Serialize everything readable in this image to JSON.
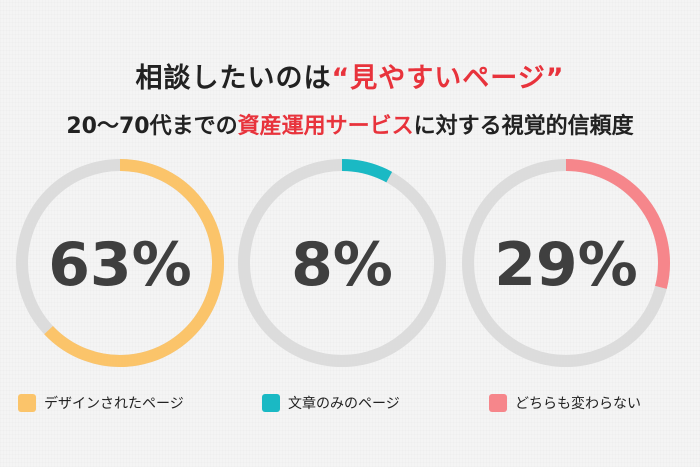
{
  "heading": {
    "line1_prefix": "相談したいのは",
    "line1_highlight": "“見やすいページ”",
    "line2_prefix": "20〜70代までの",
    "line2_highlight": "資産運用サービス",
    "line2_suffix": "に対する視覚的信頼度"
  },
  "colors": {
    "highlight": "#e8333c",
    "track": "#dcdcdc"
  },
  "chart_data": {
    "type": "pie",
    "series": [
      {
        "name": "デザインされたページ",
        "value": 63,
        "label": "63%",
        "color": "#fbc46a"
      },
      {
        "name": "文章のみのページ",
        "value": 8,
        "label": "8%",
        "color": "#1ab9c4"
      },
      {
        "name": "どちらも変わらない",
        "value": 29,
        "label": "29%",
        "color": "#f6868b"
      }
    ]
  }
}
